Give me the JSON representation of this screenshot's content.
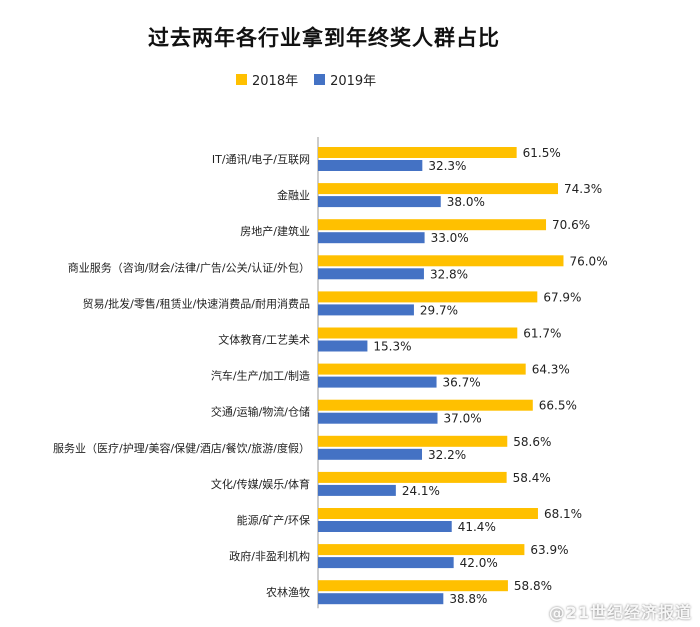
{
  "chart_data": {
    "type": "bar",
    "orientation": "horizontal",
    "title": "过去两年各行业拿到年终奖人群占比",
    "legend_position": "top",
    "categories": [
      "IT/通讯/电子/互联网",
      "金融业",
      "房地产/建筑业",
      "商业服务（咨询/财会/法律/广告/公关/认证/外包）",
      "贸易/批发/零售/租赁业/快速消费品/耐用消费品",
      "文体教育/工艺美术",
      "汽车/生产/加工/制造",
      "交通/运输/物流/仓储",
      "服务业（医疗/护理/美容/保健/酒店/餐饮/旅游/度假）",
      "文化/传媒/娱乐/体育",
      "能源/矿产/环保",
      "政府/非盈利机构",
      "农林渔牧"
    ],
    "series": [
      {
        "name": "2018年",
        "color": "#FFC000",
        "values": [
          61.5,
          74.3,
          70.6,
          76.0,
          67.9,
          61.7,
          64.3,
          66.5,
          58.6,
          58.4,
          68.1,
          63.9,
          58.8
        ],
        "labels": [
          "61.5%",
          "74.3%",
          "70.6%",
          "76.0%",
          "67.9%",
          "61.7%",
          "64.3%",
          "66.5%",
          "58.6%",
          "58.4%",
          "68.1%",
          "63.9%",
          "58.8%"
        ]
      },
      {
        "name": "2019年",
        "color": "#4472C4",
        "values": [
          32.3,
          38.0,
          33.0,
          32.8,
          29.7,
          15.3,
          36.7,
          37.0,
          32.2,
          24.1,
          41.4,
          42.0,
          38.8
        ],
        "labels": [
          "32.3%",
          "38.0%",
          "33.0%",
          "32.8%",
          "29.7%",
          "15.3%",
          "36.7%",
          "37.0%",
          "32.2%",
          "24.1%",
          "41.4%",
          "42.0%",
          "38.8%"
        ]
      }
    ],
    "xlim": [
      0,
      100
    ],
    "grid": false
  },
  "watermark": "@21世纪经济报道"
}
